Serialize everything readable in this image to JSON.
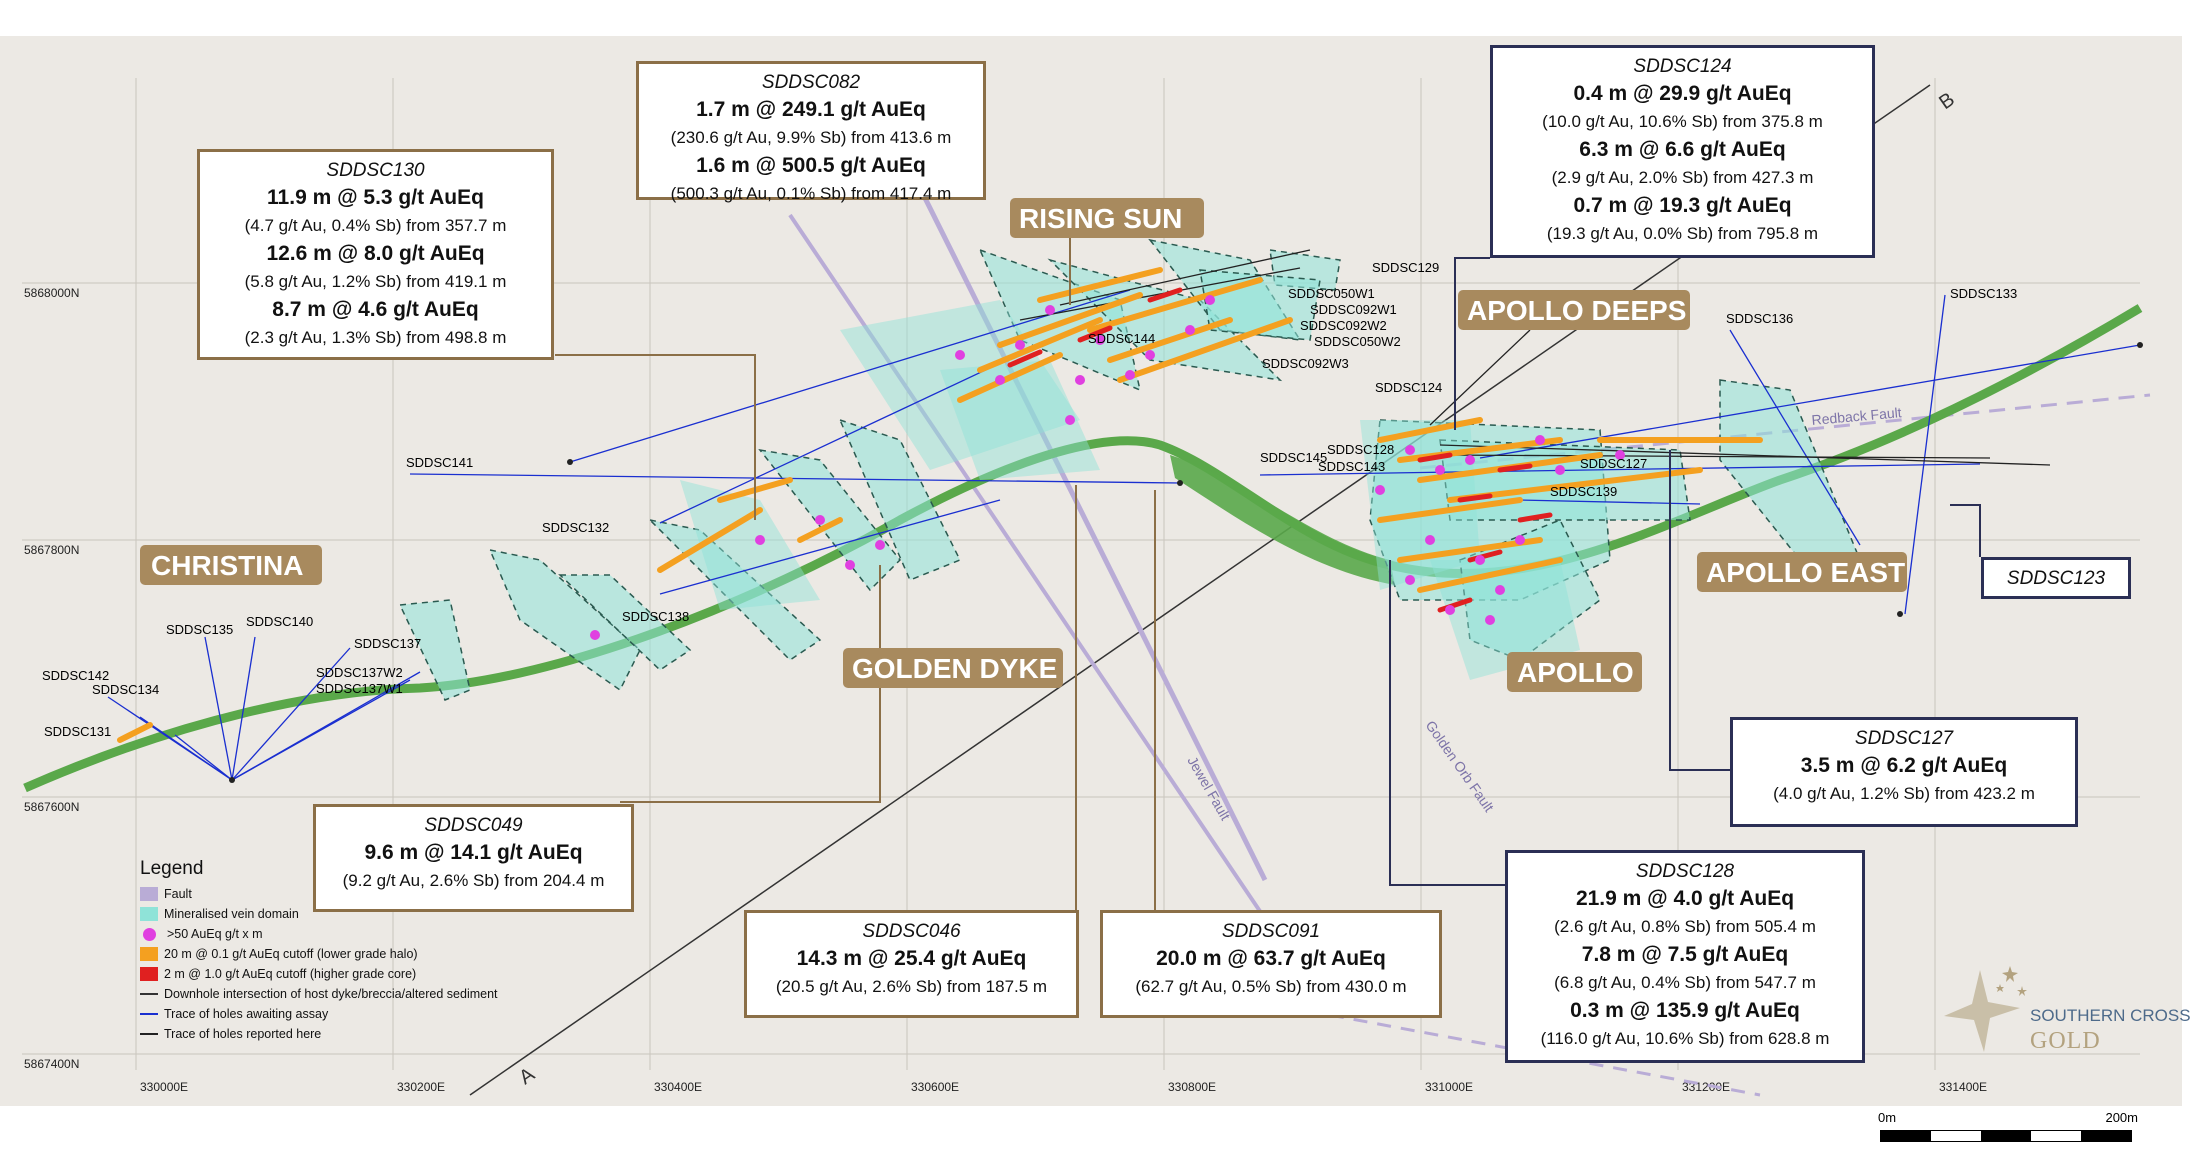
{
  "zones": {
    "christina": "CHRISTINA",
    "rising_sun": "RISING SUN",
    "apollo_deeps": "APOLLO DEEPS",
    "golden_dyke": "GOLDEN DYKE",
    "apollo": "APOLLO",
    "apollo_east": "APOLLO EAST"
  },
  "grid": {
    "eastings": [
      "330000E",
      "330200E",
      "330400E",
      "330600E",
      "330800E",
      "331000E",
      "331200E",
      "331400E"
    ],
    "northings": [
      "5868000N",
      "5867800N",
      "5867600N",
      "5867400N"
    ]
  },
  "holes": {
    "sddsc129": "SDDSC129",
    "sddsc050w1": "SDDSC050W1",
    "sddsc092w1": "SDDSC092W1",
    "sddsc092w2": "SDDSC092W2",
    "sddsc050w2": "SDDSC050W2",
    "sddsc092w3": "SDDSC092W3",
    "sddsc136": "SDDSC136",
    "sddsc133": "SDDSC133",
    "sddsc124": "SDDSC124",
    "sddsc141": "SDDSC141",
    "sddsc145": "SDDSC145",
    "sddsc128": "SDDSC128",
    "sddsc143": "SDDSC143",
    "sddsc127": "SDDSC127",
    "sddsc139": "SDDSC139",
    "sddsc132": "SDDSC132",
    "sddsc138": "SDDSC138",
    "sddsc135": "SDDSC135",
    "sddsc140": "SDDSC140",
    "sddsc137": "SDDSC137",
    "sddsc137w2": "SDDSC137W2",
    "sddsc137w1": "SDDSC137W1",
    "sddsc142": "SDDSC142",
    "sddsc134": "SDDSC134",
    "sddsc131": "SDDSC131",
    "sddsc144": "SDDSC144"
  },
  "features": {
    "redback_fault": "Redback Fault",
    "jewel_fault": "Jewel Fault",
    "golden_orb_fault": "Golden Orb Fault",
    "section_a": "A",
    "section_b": "B"
  },
  "callouts": {
    "sddsc082": {
      "title": "SDDSC082",
      "lines": [
        "1.7 m @ 249.1 g/t AuEq",
        "(230.6 g/t Au, 9.9% Sb) from 413.6 m",
        "1.6 m @ 500.5 g/t AuEq",
        "(500.3 g/t Au, 0.1% Sb) from 417.4 m"
      ]
    },
    "sddsc130": {
      "title": "SDDSC130",
      "lines": [
        "11.9 m @ 5.3 g/t AuEq",
        "(4.7 g/t Au, 0.4% Sb) from 357.7 m",
        "12.6 m @ 8.0 g/t AuEq",
        "(5.8 g/t Au, 1.2% Sb) from 419.1 m",
        "8.7 m @ 4.6 g/t AuEq",
        "(2.3 g/t Au, 1.3% Sb) from 498.8 m"
      ]
    },
    "sddsc124": {
      "title": "SDDSC124",
      "lines": [
        "0.4 m @ 29.9 g/t AuEq",
        "(10.0 g/t Au, 10.6% Sb) from 375.8 m",
        "6.3 m @ 6.6 g/t AuEq",
        "(2.9 g/t Au, 2.0% Sb) from 427.3 m",
        "0.7 m @ 19.3 g/t AuEq",
        "(19.3 g/t Au, 0.0% Sb) from 795.8 m"
      ]
    },
    "sddsc123": {
      "title": "SDDSC123"
    },
    "sddsc127": {
      "title": "SDDSC127",
      "lines": [
        "3.5 m @ 6.2 g/t AuEq",
        "(4.0 g/t Au, 1.2% Sb) from 423.2 m"
      ]
    },
    "sddsc049": {
      "title": "SDDSC049",
      "lines": [
        "9.6 m @ 14.1 g/t AuEq",
        "(9.2 g/t Au, 2.6% Sb) from 204.4 m"
      ]
    },
    "sddsc046": {
      "title": "SDDSC046",
      "lines": [
        "14.3 m @ 25.4 g/t AuEq",
        "(20.5 g/t Au, 2.6% Sb) from 187.5 m"
      ]
    },
    "sddsc091": {
      "title": "SDDSC091",
      "lines": [
        "20.0 m @ 63.7 g/t AuEq",
        "(62.7 g/t Au, 0.5% Sb) from 430.0 m"
      ]
    },
    "sddsc128": {
      "title": "SDDSC128",
      "lines": [
        "21.9 m @ 4.0 g/t AuEq",
        "(2.6 g/t Au, 0.8% Sb) from 505.4 m",
        "7.8 m @ 7.5 g/t AuEq",
        "(6.8 g/t Au, 0.4% Sb) from 547.7 m",
        "0.3 m @ 135.9 g/t AuEq",
        "(116.0 g/t Au, 10.6% Sb) from 628.8 m"
      ]
    }
  },
  "legend": {
    "title": "Legend",
    "items": [
      {
        "label": "Fault",
        "kind": "swatch",
        "color": "#b9acd6"
      },
      {
        "label": "Mineralised vein domain",
        "kind": "swatch",
        "color": "#8fe3d8"
      },
      {
        "label": ">50 AuEq g/t x m",
        "kind": "dot",
        "color": "#e040e0"
      },
      {
        "label": "20 m @ 0.1 g/t AuEq cutoff (lower grade halo)",
        "kind": "swatch",
        "color": "#f4a020"
      },
      {
        "label": "2 m @ 1.0 g/t AuEq cutoff (higher grade core)",
        "kind": "swatch",
        "color": "#e02020"
      },
      {
        "label": "Downhole intersection of host dyke/breccia/altered sediment",
        "kind": "line",
        "color": "#333333"
      },
      {
        "label": "Trace of holes awaiting assay",
        "kind": "line",
        "color": "#1a2fd0"
      },
      {
        "label": "Trace of holes reported here",
        "kind": "line",
        "color": "#222222"
      }
    ]
  },
  "brand": {
    "line1": "SOUTHERN CROSS",
    "line2": "GOLD"
  },
  "scale": {
    "start": "0m",
    "end": "200m"
  },
  "colors": {
    "background": "#ece9e4",
    "zone_label_bg": "#a88a5e",
    "dyke_green": "#5aa84a",
    "vein_domain": "#8fe3d8",
    "callout_gold": "#8b6f47",
    "callout_navy": "#2b2f55",
    "awaiting_assay": "#1a2fd0"
  }
}
